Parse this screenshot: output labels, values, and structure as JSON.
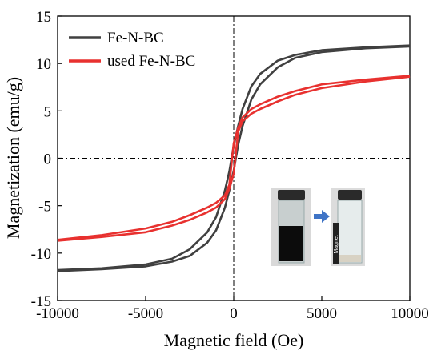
{
  "chart_data": {
    "type": "line",
    "title": "",
    "xlabel": "Magnetic field (Oe)",
    "ylabel": "Magnetization (emu/g)",
    "xlim": [
      -10000,
      10000
    ],
    "ylim": [
      -15,
      15
    ],
    "xticks": [
      -10000,
      -5000,
      0,
      5000,
      10000
    ],
    "yticks": [
      -15,
      -10,
      -5,
      0,
      5,
      10,
      15
    ],
    "grid": false,
    "legend_position": "top-left",
    "reference_lines": {
      "x": 0,
      "y": 0,
      "style": "dash-dot"
    },
    "series": [
      {
        "name": "Fe-N-BC",
        "color": "#404040",
        "upper_branch": {
          "x": [
            -10000,
            -7500,
            -5000,
            -3500,
            -2500,
            -1500,
            -1000,
            -500,
            -250,
            0,
            250,
            500,
            1000,
            1500,
            2500,
            3500,
            5000,
            7500,
            10000
          ],
          "y": [
            -11.8,
            -11.6,
            -11.2,
            -10.6,
            -9.6,
            -7.8,
            -6.2,
            -3.4,
            -1.4,
            1.3,
            3.4,
            5.2,
            7.6,
            8.9,
            10.3,
            10.9,
            11.4,
            11.7,
            11.9
          ]
        },
        "lower_branch": {
          "x": [
            -10000,
            -7500,
            -5000,
            -3500,
            -2500,
            -1500,
            -1000,
            -500,
            -250,
            0,
            250,
            500,
            1000,
            1500,
            2500,
            3500,
            5000,
            7500,
            10000
          ],
          "y": [
            -11.9,
            -11.7,
            -11.4,
            -10.9,
            -10.3,
            -8.9,
            -7.6,
            -5.2,
            -3.4,
            -1.3,
            1.4,
            3.4,
            6.2,
            7.8,
            9.6,
            10.6,
            11.2,
            11.6,
            11.8
          ]
        }
      },
      {
        "name": "used Fe-N-BC",
        "color": "#e8312f",
        "upper_branch": {
          "x": [
            -10000,
            -7500,
            -5000,
            -3500,
            -2500,
            -1500,
            -1000,
            -500,
            -250,
            0,
            250,
            500,
            1000,
            1500,
            2500,
            3500,
            5000,
            7500,
            10000
          ],
          "y": [
            -8.6,
            -8.1,
            -7.4,
            -6.7,
            -6.0,
            -5.2,
            -4.7,
            -3.9,
            -2.8,
            1.6,
            3.2,
            4.3,
            5.2,
            5.7,
            6.5,
            7.1,
            7.8,
            8.3,
            8.7
          ]
        },
        "lower_branch": {
          "x": [
            -10000,
            -7500,
            -5000,
            -3500,
            -2500,
            -1500,
            -1000,
            -500,
            -250,
            0,
            250,
            500,
            1000,
            1500,
            2500,
            3500,
            5000,
            7500,
            10000
          ],
          "y": [
            -8.7,
            -8.3,
            -7.8,
            -7.1,
            -6.5,
            -5.7,
            -5.2,
            -4.3,
            -3.2,
            -1.6,
            2.8,
            3.9,
            4.7,
            5.2,
            6.0,
            6.7,
            7.4,
            8.1,
            8.6
          ]
        }
      }
    ],
    "inset": {
      "description_label": "Magnet"
    }
  }
}
